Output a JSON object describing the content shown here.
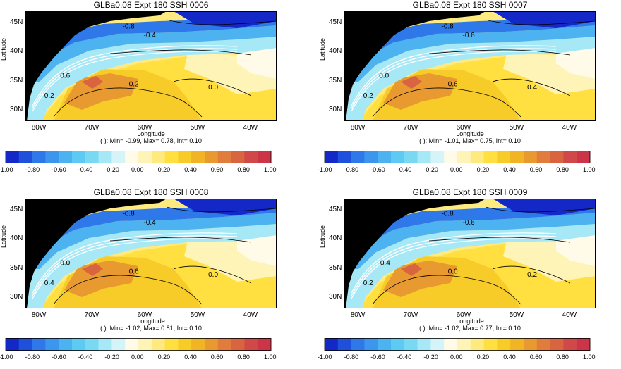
{
  "chart_data": [
    {
      "type": "heatmap",
      "title": "GLBa0.08 Expt 180 SSH  0006",
      "xlabel": "Longitude",
      "ylabel": "Latitude",
      "xticks": [
        "80W",
        "70W",
        "60W",
        "50W",
        "40W"
      ],
      "yticks": [
        "45N",
        "40N",
        "35N",
        "30N"
      ],
      "stats": "( ): Min= -0.99, Max= 0.78, Int= 0.10",
      "contour_labels": [
        "-0.8",
        "-0.4",
        "0.6",
        "0.2",
        "0.0",
        "0.2"
      ]
    },
    {
      "type": "heatmap",
      "title": "GLBa0.08 Expt 180 SSH  0007",
      "xlabel": "Longitude",
      "ylabel": "Latitude",
      "xticks": [
        "80W",
        "70W",
        "60W",
        "50W",
        "40W"
      ],
      "yticks": [
        "45N",
        "40N",
        "35N",
        "30N"
      ],
      "stats": "( ): Min= -1.01, Max= 0.75, Int= 0.10",
      "contour_labels": [
        "-0.8",
        "-0.6",
        "0.0",
        "0.6",
        "0.4",
        "0.2"
      ]
    },
    {
      "type": "heatmap",
      "title": "GLBa0.08 Expt 180 SSH  0008",
      "xlabel": "Longitude",
      "ylabel": "Latitude",
      "xticks": [
        "80W",
        "70W",
        "60W",
        "50W",
        "40W"
      ],
      "yticks": [
        "45N",
        "40N",
        "35N",
        "30N"
      ],
      "stats": "( ): Min= -1.02, Max= 0.81, Int= 0.10",
      "contour_labels": [
        "-0.8",
        "-0.4",
        "0.0",
        "0.6",
        "0.0",
        "0.4"
      ]
    },
    {
      "type": "heatmap",
      "title": "GLBa0.08 Expt 180 SSH  0009",
      "xlabel": "Longitude",
      "ylabel": "Latitude",
      "xticks": [
        "80W",
        "70W",
        "60W",
        "50W",
        "40W"
      ],
      "yticks": [
        "45N",
        "40N",
        "35N",
        "30N"
      ],
      "stats": "( ): Min= -1.02, Max= 0.77, Int= 0.10",
      "contour_labels": [
        "-0.8",
        "-0.6",
        "-0.4",
        "0.0",
        "0.2",
        "0.2"
      ]
    }
  ],
  "colorbar": {
    "labels": [
      "-1.00",
      "-0.80",
      "-0.60",
      "-0.40",
      "-0.20",
      "0.00",
      "0.20",
      "0.40",
      "0.60",
      "0.80",
      "1.00"
    ],
    "colors": [
      "#1428c8",
      "#1e50dc",
      "#2e78ea",
      "#3c96ee",
      "#4cb2f0",
      "#5ccaf2",
      "#7ad9f2",
      "#a6e8f6",
      "#d4f4fa",
      "#fffbe8",
      "#fff4b8",
      "#ffea80",
      "#ffe040",
      "#f8cc28",
      "#f0b424",
      "#e89a30",
      "#e07c3c",
      "#d86440",
      "#d04848",
      "#cc3448"
    ]
  },
  "colors": {
    "land": "#000000",
    "contour": "#000000",
    "front": "#ffffff"
  }
}
